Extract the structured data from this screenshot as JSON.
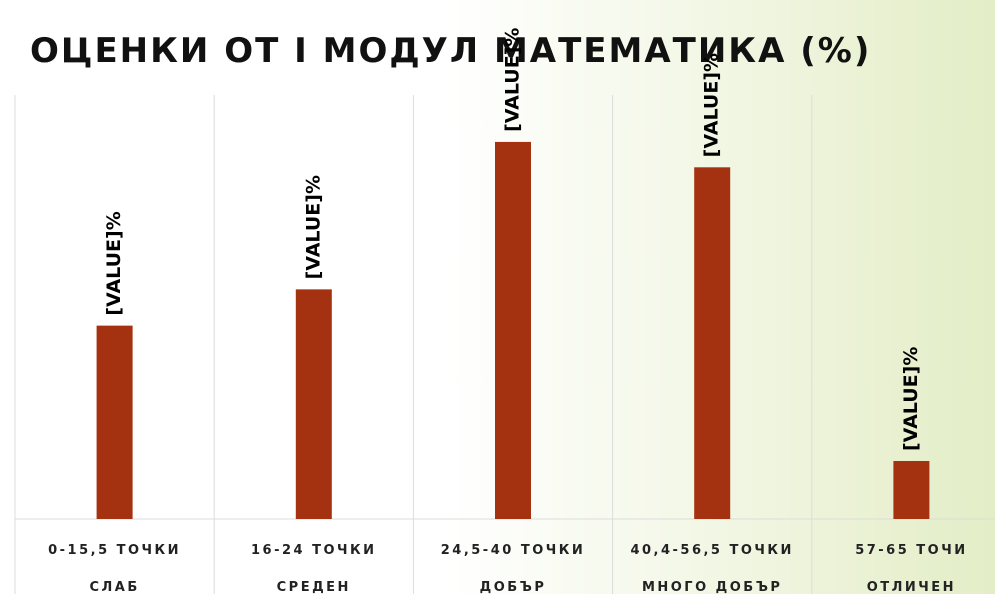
{
  "chart_data": {
    "type": "bar",
    "title": "ОЦЕНКИ ОТ I МОДУЛ МАТЕМАТИКА (%)",
    "categories": [
      [
        "0-15,5 ТОЧКИ",
        "СЛАБ"
      ],
      [
        "16-24 ТОЧКИ",
        "СРЕДЕН"
      ],
      [
        "24,5-40 ТОЧКИ",
        "ДОБЪР"
      ],
      [
        "40,4-56,5 ТОЧКИ",
        "МНОГО ДОБЪР"
      ],
      [
        "57-65 ТОЧИ",
        "ОТЛИЧЕН"
      ]
    ],
    "values": [
      16,
      19,
      31.2,
      29.1,
      4.8
    ],
    "value_labels": [
      "[VALUE]%",
      "[VALUE]%",
      "[VALUE]%",
      "[VALUE]%",
      "[VALUE]%"
    ],
    "color": "#a4310f",
    "ylim": [
      0,
      35
    ]
  }
}
